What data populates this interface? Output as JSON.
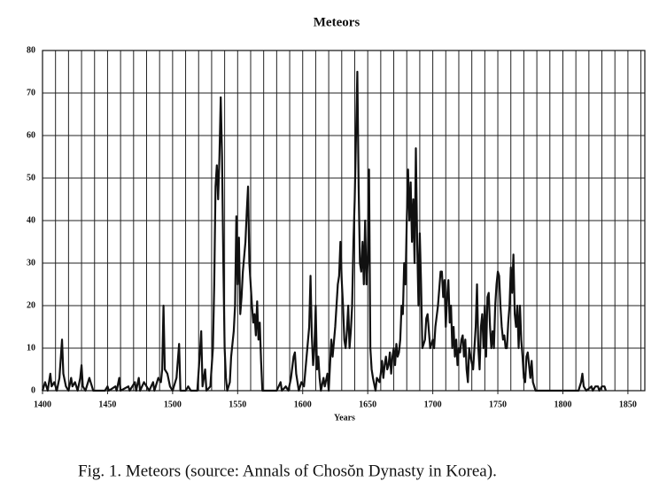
{
  "chart_data": {
    "type": "line",
    "title": "Meteors",
    "x_label": "Years",
    "caption": "Fig. 1. Meteors (source: Annals of Chosŏn Dynasty in Korea).",
    "color": "#111111",
    "xlim": [
      1400,
      1863
    ],
    "xticks": [
      1400,
      1450,
      1500,
      1550,
      1600,
      1650,
      1700,
      1750,
      1800,
      1850
    ],
    "xgrid": [
      1410,
      1420,
      1430,
      1440,
      1450,
      1460,
      1470,
      1480,
      1490,
      1500,
      1510,
      1520,
      1530,
      1540,
      1550,
      1560,
      1570,
      1580,
      1590,
      1600,
      1610,
      1620,
      1630,
      1640,
      1650,
      1660,
      1670,
      1680,
      1690,
      1700,
      1710,
      1720,
      1730,
      1740,
      1750,
      1760,
      1770,
      1780,
      1790,
      1800,
      1810,
      1820,
      1830,
      1840,
      1850,
      1860
    ],
    "ylim": [
      0,
      80
    ],
    "yticks": [
      0,
      10,
      20,
      30,
      40,
      50,
      60,
      70,
      80
    ],
    "grid": true,
    "x": [
      1400,
      1402,
      1404,
      1406,
      1407,
      1409,
      1411,
      1413,
      1415,
      1416,
      1418,
      1420,
      1422,
      1423,
      1425,
      1427,
      1429,
      1430,
      1431,
      1433,
      1436,
      1437,
      1439,
      1448,
      1450,
      1451,
      1456,
      1457,
      1459,
      1460,
      1466,
      1467,
      1471,
      1472,
      1474,
      1475,
      1478,
      1480,
      1482,
      1485,
      1486,
      1489,
      1491,
      1492,
      1493,
      1494,
      1496,
      1498,
      1500,
      1503,
      1505,
      1506,
      1510,
      1512,
      1514,
      1519,
      1521,
      1522,
      1523,
      1525,
      1526,
      1529,
      1531,
      1532,
      1533,
      1534,
      1535,
      1536,
      1537,
      1538,
      1539,
      1540,
      1541,
      1542,
      1544,
      1545,
      1546,
      1547,
      1548,
      1549,
      1550,
      1551,
      1552,
      1553,
      1554,
      1556,
      1557,
      1558,
      1559,
      1560,
      1561,
      1562,
      1563,
      1564,
      1565,
      1566,
      1567,
      1568,
      1569,
      1580,
      1583,
      1584,
      1587,
      1589,
      1591,
      1593,
      1594,
      1595,
      1597,
      1599,
      1601,
      1603,
      1605,
      1606,
      1607,
      1608,
      1609,
      1610,
      1611,
      1612,
      1613,
      1614,
      1616,
      1617,
      1619,
      1620,
      1621,
      1622,
      1623,
      1625,
      1626,
      1627,
      1628,
      1629,
      1630,
      1631,
      1632,
      1633,
      1634,
      1635,
      1636,
      1637,
      1638,
      1639,
      1640,
      1641,
      1642,
      1643,
      1644,
      1645,
      1646,
      1647,
      1648,
      1649,
      1650,
      1651,
      1652,
      1653,
      1654,
      1656,
      1657,
      1659,
      1660,
      1661,
      1662,
      1663,
      1664,
      1665,
      1666,
      1667,
      1668,
      1669,
      1670,
      1671,
      1672,
      1673,
      1674,
      1675,
      1676,
      1677,
      1678,
      1679,
      1680,
      1681,
      1682,
      1683,
      1684,
      1685,
      1686,
      1687,
      1688,
      1689,
      1690,
      1691,
      1692,
      1694,
      1695,
      1696,
      1697,
      1698,
      1700,
      1701,
      1702,
      1704,
      1706,
      1707,
      1708,
      1709,
      1710,
      1711,
      1712,
      1713,
      1714,
      1715,
      1716,
      1717,
      1718,
      1719,
      1720,
      1721,
      1722,
      1723,
      1724,
      1725,
      1726,
      1727,
      1728,
      1729,
      1731,
      1733,
      1734,
      1735,
      1736,
      1737,
      1738,
      1739,
      1740,
      1741,
      1742,
      1743,
      1744,
      1745,
      1746,
      1747,
      1748,
      1749,
      1750,
      1751,
      1752,
      1753,
      1754,
      1755,
      1756,
      1757,
      1758,
      1759,
      1760,
      1761,
      1762,
      1763,
      1764,
      1765,
      1766,
      1767,
      1768,
      1769,
      1770,
      1771,
      1772,
      1773,
      1774,
      1775,
      1776,
      1777,
      1779,
      1812,
      1814,
      1815,
      1816,
      1818,
      1822,
      1823,
      1825,
      1827,
      1828,
      1830,
      1832,
      1833
    ],
    "values": [
      0,
      2,
      0,
      4,
      1,
      2,
      0,
      3,
      12,
      4,
      1,
      0,
      3,
      1,
      2,
      0,
      3,
      6,
      1,
      0,
      3,
      2,
      0,
      0,
      1,
      0,
      1,
      0,
      3,
      0,
      1,
      0,
      2,
      0,
      3,
      0,
      2,
      1,
      0,
      2,
      0,
      3,
      2,
      5,
      20,
      5,
      4,
      1,
      0,
      3,
      11,
      0,
      0,
      1,
      0,
      0,
      9,
      14,
      1,
      5,
      0,
      1,
      10,
      25,
      48,
      53,
      45,
      55,
      69,
      55,
      30,
      10,
      3,
      0,
      2,
      8,
      11,
      14,
      20,
      41,
      25,
      36,
      18,
      22,
      28,
      35,
      42,
      48,
      30,
      25,
      20,
      16,
      18,
      13,
      21,
      12,
      16,
      7,
      0,
      0,
      2,
      0,
      1,
      0,
      3,
      8,
      9,
      4,
      0,
      2,
      1,
      8,
      15,
      27,
      13,
      6,
      10,
      20,
      5,
      8,
      3,
      0,
      3,
      1,
      4,
      0,
      6,
      12,
      8,
      15,
      20,
      25,
      27,
      35,
      26,
      20,
      12,
      10,
      14,
      20,
      10,
      14,
      20,
      35,
      45,
      60,
      75,
      48,
      30,
      28,
      35,
      25,
      40,
      25,
      30,
      52,
      10,
      5,
      3,
      0,
      3,
      2,
      4,
      7,
      3,
      6,
      8,
      5,
      6,
      9,
      4,
      8,
      10,
      6,
      11,
      8,
      9,
      12,
      20,
      18,
      30,
      25,
      40,
      52,
      40,
      49,
      35,
      45,
      30,
      57,
      35,
      20,
      37,
      25,
      10,
      12,
      17,
      18,
      14,
      10,
      12,
      10,
      15,
      20,
      28,
      28,
      22,
      26,
      15,
      22,
      26,
      16,
      20,
      10,
      15,
      8,
      12,
      6,
      10,
      9,
      12,
      13,
      8,
      12,
      5,
      2,
      10,
      8,
      5,
      15,
      25,
      10,
      5,
      15,
      18,
      10,
      20,
      8,
      22,
      23,
      15,
      10,
      14,
      10,
      20,
      25,
      28,
      27,
      20,
      15,
      12,
      13,
      10,
      10,
      16,
      20,
      29,
      23,
      32,
      18,
      15,
      20,
      10,
      20,
      12,
      8,
      3,
      2,
      8,
      9,
      6,
      3,
      7,
      2,
      0,
      0,
      2,
      4,
      1,
      0,
      1,
      0,
      1,
      1,
      0,
      1,
      1,
      0
    ]
  }
}
